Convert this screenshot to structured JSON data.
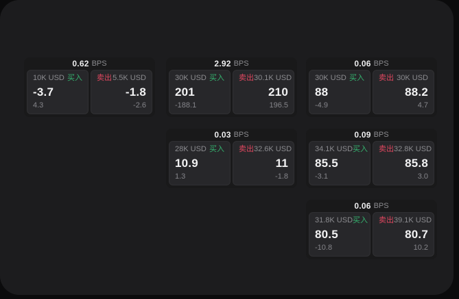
{
  "labels": {
    "bps": "BPS",
    "buy": "买入",
    "sell": "卖出"
  },
  "colors": {
    "page_bg": "#0b0b0c",
    "surface_bg": "#1c1c1e",
    "card_bg": "#19191a",
    "pane_bg": "#27272a",
    "buy_green": "#35b26e",
    "sell_red": "#e0475f",
    "primary_text": "#f2f2f3",
    "muted_text": "#8b8b8f"
  },
  "cards": [
    {
      "bps": "0.62",
      "buy_size": "10K USD",
      "buy_price": "-3.7",
      "buy_change": "4.3",
      "sell_size": "5.5K USD",
      "sell_price": "-1.8",
      "sell_change": "-2.6"
    },
    {
      "bps": "2.92",
      "buy_size": "30K USD",
      "buy_price": "201",
      "buy_change": "-188.1",
      "sell_size": "30.1K USD",
      "sell_price": "210",
      "sell_change": "196.5"
    },
    {
      "bps": "0.06",
      "buy_size": "30K USD",
      "buy_price": "88",
      "buy_change": "-4.9",
      "sell_size": "30K USD",
      "sell_price": "88.2",
      "sell_change": "4.7"
    },
    {
      "bps": "0.03",
      "buy_size": "28K USD",
      "buy_price": "10.9",
      "buy_change": "1.3",
      "sell_size": "32.6K USD",
      "sell_price": "11",
      "sell_change": "-1.8"
    },
    {
      "bps": "0.09",
      "buy_size": "34.1K USD",
      "buy_price": "85.5",
      "buy_change": "-3.1",
      "sell_size": "32.8K USD",
      "sell_price": "85.8",
      "sell_change": "3.0"
    },
    {
      "bps": "0.06",
      "buy_size": "31.8K USD",
      "buy_price": "80.5",
      "buy_change": "-10.8",
      "sell_size": "39.1K USD",
      "sell_price": "80.7",
      "sell_change": "10.2"
    }
  ]
}
